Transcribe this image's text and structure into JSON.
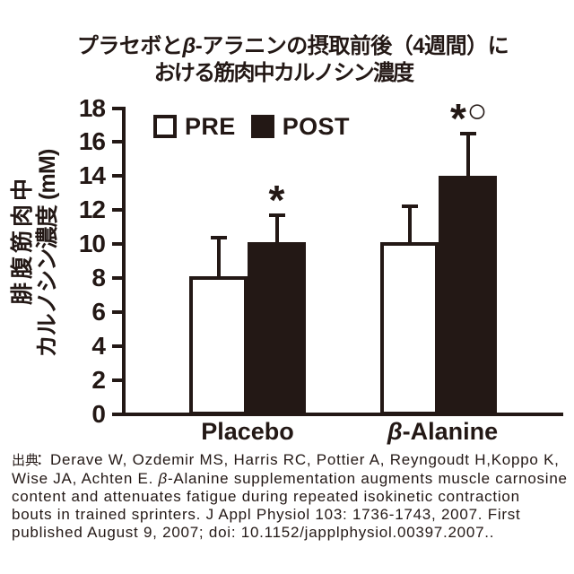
{
  "figure": {
    "background": "#ffffff",
    "ink_color": "#231815"
  },
  "chart_data": {
    "type": "bar",
    "title": "プラセボとβ-アラニンの摂取前後（4週間）における筋肉中カルノシン濃度",
    "title_lines": [
      "プラセボとβ-アラニンの摂取前後（4週間）に",
      "おける筋肉中カルノシン濃度"
    ],
    "ylabel": "腓腹筋肉中カルノシン濃度 (mM)",
    "ylabel_lines": [
      "腓腹筋肉中",
      "カルノシン濃度 (mM)"
    ],
    "xlabel": "",
    "ylim": [
      0,
      18
    ],
    "ytick_step": 2,
    "ytick_values": [
      0,
      2,
      4,
      6,
      8,
      10,
      12,
      14,
      16,
      18
    ],
    "grid": false,
    "legend_position": "top-left-inside",
    "categories": [
      "Placebo",
      "β-Alanine"
    ],
    "series": [
      {
        "name": "PRE",
        "fill": "#ffffff",
        "values": [
          8.0,
          10.0
        ],
        "errors_up": [
          2.35,
          2.2
        ]
      },
      {
        "name": "POST",
        "fill": "#231815",
        "values": [
          10.0,
          13.9
        ],
        "errors_up": [
          1.7,
          2.6
        ]
      }
    ],
    "significance": [
      {
        "category": "Placebo",
        "series": "POST",
        "label": "*"
      },
      {
        "category": "β-Alanine",
        "series": "POST",
        "label": "*○"
      }
    ]
  },
  "citation": {
    "lines": [
      "出典：Derave W, Ozdemir MS, Harris RC, Pottier A, Reyngoudt H,Koppo K,",
      "Wise JA, Achten E. β-Alanine supplementation augments muscle carnosine",
      "content and attenuates fatigue during repeated isokinetic contraction",
      "bouts in trained sprinters. J Appl Physiol 103: 1736-1743, 2007. First",
      "published August 9, 2007; doi: 10.1152/japplphysiol.00397.2007.."
    ]
  }
}
